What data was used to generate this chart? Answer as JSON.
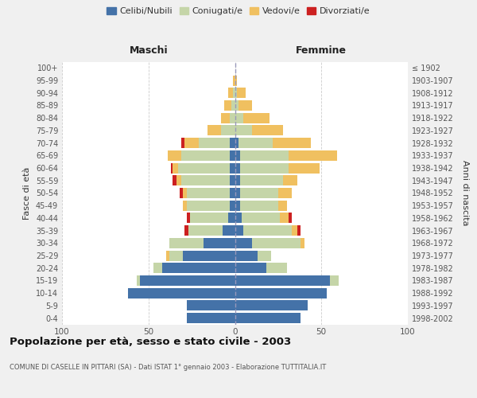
{
  "age_groups": [
    "0-4",
    "5-9",
    "10-14",
    "15-19",
    "20-24",
    "25-29",
    "30-34",
    "35-39",
    "40-44",
    "45-49",
    "50-54",
    "55-59",
    "60-64",
    "65-69",
    "70-74",
    "75-79",
    "80-84",
    "85-89",
    "90-94",
    "95-99",
    "100+"
  ],
  "birth_years": [
    "1998-2002",
    "1993-1997",
    "1988-1992",
    "1983-1987",
    "1978-1982",
    "1973-1977",
    "1968-1972",
    "1963-1967",
    "1958-1962",
    "1953-1957",
    "1948-1952",
    "1943-1947",
    "1938-1942",
    "1933-1937",
    "1928-1932",
    "1923-1927",
    "1918-1922",
    "1913-1917",
    "1908-1912",
    "1903-1907",
    "≤ 1902"
  ],
  "maschi": {
    "celibi": [
      28,
      28,
      62,
      55,
      42,
      30,
      18,
      7,
      4,
      3,
      3,
      3,
      3,
      3,
      3,
      0,
      0,
      0,
      0,
      0,
      0
    ],
    "coniugati": [
      0,
      0,
      0,
      2,
      5,
      8,
      20,
      20,
      22,
      25,
      25,
      28,
      30,
      28,
      18,
      8,
      3,
      2,
      1,
      0,
      0
    ],
    "vedovi": [
      0,
      0,
      0,
      0,
      0,
      2,
      0,
      0,
      0,
      2,
      2,
      3,
      3,
      8,
      8,
      8,
      5,
      4,
      3,
      1,
      0
    ],
    "divorziati": [
      0,
      0,
      0,
      0,
      0,
      0,
      0,
      2,
      2,
      0,
      2,
      2,
      1,
      0,
      2,
      0,
      0,
      0,
      0,
      0,
      0
    ]
  },
  "femmine": {
    "nubili": [
      38,
      42,
      53,
      55,
      18,
      13,
      10,
      5,
      4,
      3,
      3,
      3,
      3,
      3,
      2,
      0,
      0,
      0,
      0,
      0,
      0
    ],
    "coniugate": [
      0,
      0,
      0,
      5,
      12,
      8,
      28,
      28,
      22,
      22,
      22,
      25,
      28,
      28,
      20,
      10,
      5,
      2,
      1,
      0,
      0
    ],
    "vedove": [
      0,
      0,
      0,
      0,
      0,
      0,
      2,
      3,
      5,
      5,
      8,
      8,
      18,
      28,
      22,
      18,
      15,
      8,
      5,
      1,
      0
    ],
    "divorziate": [
      0,
      0,
      0,
      0,
      0,
      0,
      0,
      2,
      2,
      0,
      0,
      0,
      0,
      0,
      0,
      0,
      0,
      0,
      0,
      0,
      0
    ]
  },
  "colors": {
    "celibi": "#4472a8",
    "coniugati": "#c5d5a8",
    "vedovi": "#f0c060",
    "divorziati": "#cc2020"
  },
  "title": "Popolazione per età, sesso e stato civile - 2003",
  "subtitle": "COMUNE DI CASELLE IN PITTARI (SA) - Dati ISTAT 1° gennaio 2003 - Elaborazione TUTTITALIA.IT",
  "xlabel_left": "Maschi",
  "xlabel_right": "Femmine",
  "ylabel_left": "Fasce di età",
  "ylabel_right": "Anni di nascita",
  "xlim": 100,
  "bg_color": "#f0f0f0",
  "plot_bg": "#ffffff"
}
